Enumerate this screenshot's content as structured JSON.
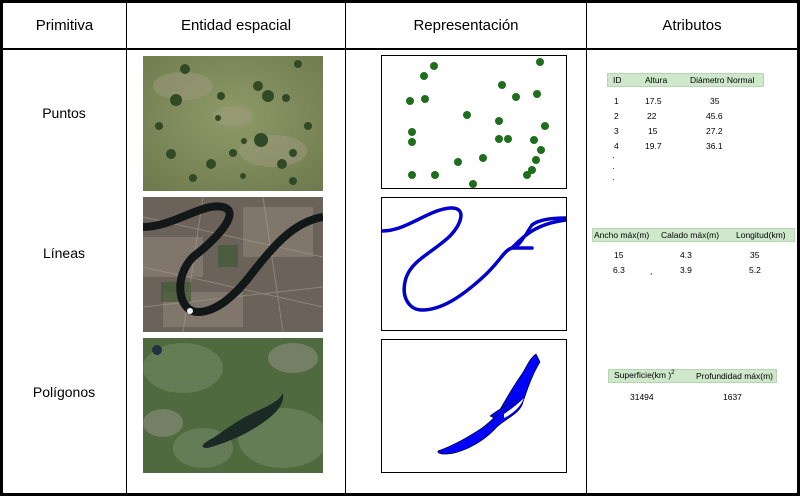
{
  "headers": {
    "primitiva": "Primitiva",
    "entidad": "Entidad espacial",
    "representacion": "Representación",
    "atributos": "Atributos"
  },
  "rows": {
    "puntos": {
      "label": "Puntos",
      "table": {
        "headers": [
          "ID",
          "Altura",
          "Diámetro Normal"
        ],
        "rows": [
          [
            "1",
            "17.5",
            "35"
          ],
          [
            "2",
            "22",
            "45.6"
          ],
          [
            "3",
            "15",
            "27.2"
          ],
          [
            "4",
            "19.7",
            "36.1"
          ]
        ],
        "ellipsis": [
          "·",
          "·",
          "·"
        ]
      }
    },
    "lineas": {
      "label": "Líneas",
      "table": {
        "headers": [
          "Ancho máx(m)",
          "Calado máx(m)",
          "Longitud(km)"
        ],
        "rows": [
          [
            "15",
            "4.3",
            "35"
          ],
          [
            "6.3",
            "3.9",
            "5.2"
          ]
        ],
        "stray_comma": ","
      }
    },
    "poligonos": {
      "label": "Polígonos",
      "table": {
        "headers": [
          "Superficie(km )",
          "Profundidad máx(m)"
        ],
        "superscript": "2",
        "rows": [
          [
            "31494",
            "1637"
          ]
        ]
      }
    }
  },
  "colors": {
    "point": "#1f6e1d",
    "line": "#0000cc",
    "polygon": "#0000ff",
    "header_bg": "#cfe8cc"
  }
}
